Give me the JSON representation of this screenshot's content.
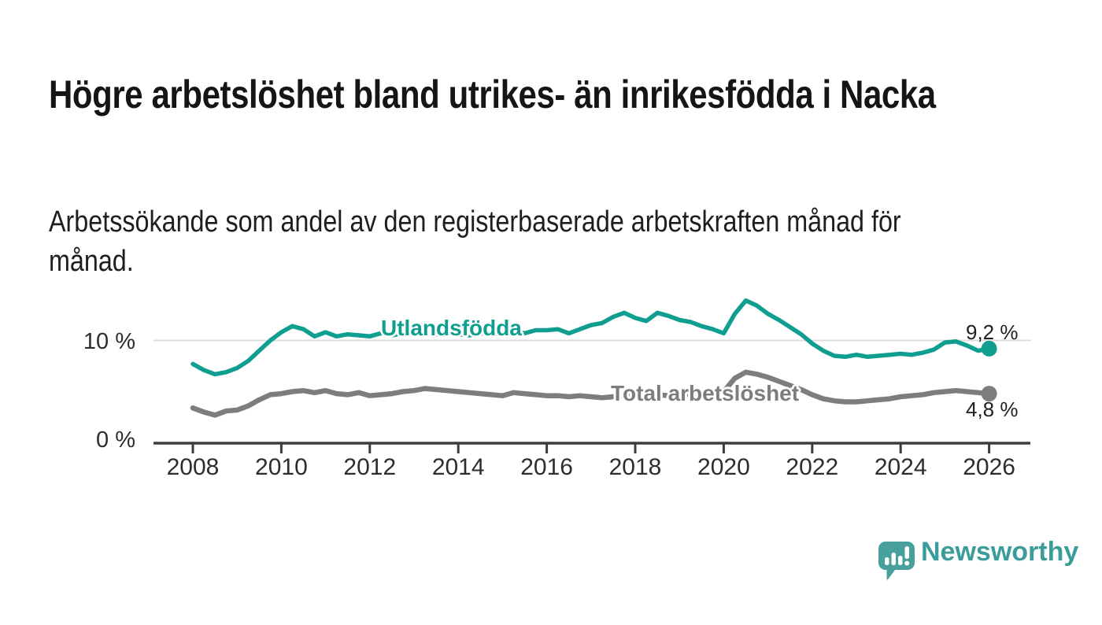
{
  "header": {
    "title": "Högre arbetslöshet bland utrikes- än inrikesfödda i Nacka",
    "subtitle": "Arbetssökande som andel av den registerbaserade arbetskraften månad för månad."
  },
  "chart_data": {
    "type": "line",
    "x_unit": "year (quarterly samples of monthly series)",
    "x": [
      2008.0,
      2008.25,
      2008.5,
      2008.75,
      2009.0,
      2009.25,
      2009.5,
      2009.75,
      2010.0,
      2010.25,
      2010.5,
      2010.75,
      2011.0,
      2011.25,
      2011.5,
      2011.75,
      2012.0,
      2012.25,
      2012.5,
      2012.75,
      2013.0,
      2013.25,
      2013.5,
      2013.75,
      2014.0,
      2014.25,
      2014.5,
      2014.75,
      2015.0,
      2015.25,
      2015.5,
      2015.75,
      2016.0,
      2016.25,
      2016.5,
      2016.75,
      2017.0,
      2017.25,
      2017.5,
      2017.75,
      2018.0,
      2018.25,
      2018.5,
      2018.75,
      2019.0,
      2019.25,
      2019.5,
      2019.75,
      2020.0,
      2020.25,
      2020.5,
      2020.75,
      2021.0,
      2021.25,
      2021.5,
      2021.75,
      2022.0,
      2022.25,
      2022.5,
      2022.75,
      2023.0,
      2023.25,
      2023.5,
      2023.75,
      2024.0,
      2024.25,
      2024.5,
      2024.75,
      2025.0,
      2025.25,
      2025.5,
      2025.75,
      2026.0
    ],
    "series": [
      {
        "name": "Utlandsfödda",
        "color": "#0f9e90",
        "end_value": 9.2,
        "end_label": "9,2 %",
        "values": [
          7.7,
          7.1,
          6.7,
          6.9,
          7.3,
          8.0,
          9.0,
          10.0,
          10.8,
          11.4,
          11.1,
          10.4,
          10.8,
          10.4,
          10.6,
          10.5,
          10.4,
          10.7,
          10.5,
          10.7,
          10.6,
          10.8,
          10.6,
          10.7,
          10.6,
          10.5,
          10.7,
          10.6,
          10.7,
          10.9,
          10.7,
          11.0,
          11.0,
          11.1,
          10.7,
          11.1,
          11.5,
          11.7,
          12.3,
          12.7,
          12.2,
          11.9,
          12.7,
          12.4,
          12.0,
          11.8,
          11.4,
          11.1,
          10.7,
          12.6,
          13.9,
          13.4,
          12.6,
          12.0,
          11.3,
          10.6,
          9.7,
          9.0,
          8.5,
          8.4,
          8.6,
          8.4,
          8.5,
          8.6,
          8.7,
          8.6,
          8.8,
          9.1,
          9.8,
          9.9,
          9.5,
          9.0,
          9.2
        ]
      },
      {
        "name": "Total arbetslöshet",
        "color": "#7d7d7d",
        "end_value": 4.8,
        "end_label": "4,8 %",
        "values": [
          3.4,
          3.0,
          2.7,
          3.1,
          3.2,
          3.6,
          4.2,
          4.7,
          4.8,
          5.0,
          5.1,
          4.9,
          5.1,
          4.8,
          4.7,
          4.9,
          4.6,
          4.7,
          4.8,
          5.0,
          5.1,
          5.3,
          5.2,
          5.1,
          5.0,
          4.9,
          4.8,
          4.7,
          4.6,
          4.9,
          4.8,
          4.7,
          4.6,
          4.6,
          4.5,
          4.6,
          4.5,
          4.4,
          4.5,
          4.6,
          4.5,
          4.6,
          4.7,
          4.6,
          4.7,
          4.8,
          4.9,
          5.0,
          5.0,
          6.3,
          6.9,
          6.7,
          6.4,
          6.0,
          5.6,
          5.2,
          4.7,
          4.3,
          4.1,
          4.0,
          4.0,
          4.1,
          4.2,
          4.3,
          4.5,
          4.6,
          4.7,
          4.9,
          5.0,
          5.1,
          5.0,
          4.9,
          4.8
        ]
      }
    ],
    "xticks": [
      2008,
      2010,
      2012,
      2014,
      2016,
      2018,
      2020,
      2022,
      2024,
      2026
    ],
    "yticks": [
      {
        "value": 0,
        "label": "0 %"
      },
      {
        "value": 10,
        "label": "10 %"
      }
    ],
    "ylim": [
      0,
      15.4
    ],
    "xlim": [
      2007.1,
      2026.9
    ],
    "grid": "single light horizontal gridline at 10 %",
    "legend": "inline labels on lines",
    "colors": {
      "gridline": "#dcdcdc",
      "axis": "#3d3d3d",
      "tick_label": "#2d2d2d"
    }
  },
  "footer": {
    "brand": "Newsworthy",
    "brand_color": "#3b9d99",
    "logo_icon": "speech-bubble-with-bar-chart-and-exclamation",
    "logo_bubble_color": "#47a09b"
  }
}
